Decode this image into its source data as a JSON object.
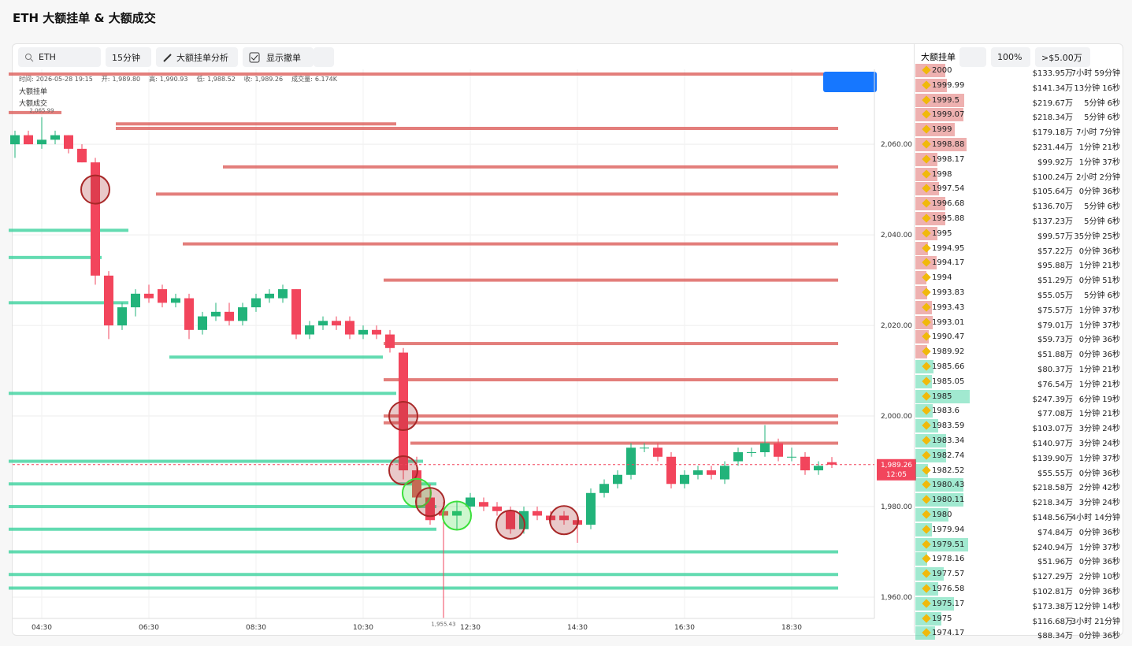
{
  "header": {
    "title": "ETH 大额挂单 & 大额成交"
  },
  "toolbar": {
    "symbol": "ETH",
    "interval": "15分钟",
    "analysis": "大额挂单分析",
    "show_cancel": "显示撤单"
  },
  "chart_data": {
    "type": "candlestick",
    "info": [
      {
        "label": "时间:",
        "value": "2026-05-28 19:15"
      },
      {
        "label": "开:",
        "value": "1,989.80"
      },
      {
        "label": "高:",
        "value": "1,990.93"
      },
      {
        "label": "低:",
        "value": "1,988.52"
      },
      {
        "label": "收:",
        "value": "1,989.26"
      },
      {
        "label": "成交量:",
        "value": "6.174K"
      }
    ],
    "legend": [
      "大额挂单",
      "大额成交"
    ],
    "x": [
      "04:00",
      "04:15",
      "04:30",
      "04:45",
      "05:00",
      "05:15",
      "05:30",
      "05:45",
      "06:00",
      "06:15",
      "06:30",
      "06:45",
      "07:00",
      "07:15",
      "07:30",
      "07:45",
      "08:00",
      "08:15",
      "08:30",
      "08:45",
      "09:00",
      "09:15",
      "09:30",
      "09:45",
      "10:00",
      "10:15",
      "10:30",
      "10:45",
      "11:00",
      "11:15",
      "11:30",
      "11:45",
      "12:00",
      "12:15",
      "12:30",
      "12:45",
      "13:00",
      "13:15",
      "13:30",
      "13:45",
      "14:00",
      "14:15",
      "14:30",
      "14:45",
      "15:00",
      "15:15",
      "15:30",
      "15:45",
      "16:00",
      "16:15",
      "16:30",
      "16:45",
      "17:00",
      "17:15",
      "17:30",
      "17:45",
      "18:00",
      "18:15",
      "18:30",
      "18:45",
      "19:00",
      "19:15"
    ],
    "open": [
      2060,
      2062,
      2060,
      2061,
      2062,
      2059,
      2056,
      2031,
      2020,
      2024,
      2027,
      2028,
      2025,
      2026,
      2019,
      2022,
      2023,
      2021,
      2024,
      2026,
      2026,
      2028,
      2018,
      2020,
      2021,
      2021,
      2018,
      2019,
      2018,
      2014,
      1988,
      1982,
      1979,
      1978,
      1980,
      1981,
      1980,
      1979,
      1975,
      1979,
      1978,
      1978,
      1977,
      1976,
      1983,
      1985,
      1987,
      1993,
      1993,
      1991,
      1985,
      1987,
      1988,
      1986,
      1990,
      1992,
      1992,
      1994,
      1991,
      1991,
      1988,
      1989.8
    ],
    "high": [
      2063,
      2063,
      2065.99,
      2063,
      2062,
      2060,
      2057,
      2032,
      2025,
      2028,
      2029,
      2029,
      2027,
      2027,
      2023,
      2025,
      2025,
      2025,
      2027,
      2028,
      2029,
      2028,
      2021,
      2022,
      2022,
      2022,
      2020,
      2020,
      2019,
      2015,
      1991,
      1985,
      1981,
      1981,
      1983,
      1982,
      1981,
      1980,
      1980,
      1980,
      1979,
      1979,
      1978,
      1984,
      1986,
      1988,
      1994,
      1994,
      1994,
      1992,
      1988,
      1989,
      1989,
      1990,
      1993,
      1993,
      1998,
      1995,
      1993,
      1992,
      1990,
      1990.93
    ],
    "low": [
      2057,
      2060,
      2059,
      2060,
      2058,
      2056,
      2029,
      2017,
      2019,
      2022,
      2025,
      2024,
      2024,
      2017,
      2018,
      2021,
      2020,
      2020,
      2023,
      2025,
      2025,
      2017,
      2017,
      2019,
      2019,
      2017,
      2017,
      2017,
      2014,
      1986,
      1980,
      1976,
      1955.43,
      1975,
      1979,
      1979,
      1978,
      1974,
      1974,
      1977,
      1976,
      1976,
      1972,
      1975,
      1982,
      1984,
      1986,
      1992,
      1990,
      1984,
      1984,
      1986,
      1986,
      1985,
      1989,
      1991,
      1991,
      1990,
      1990,
      1987,
      1987,
      1988.52
    ],
    "close": [
      2062,
      2060,
      2061,
      2062,
      2059,
      2056,
      2031,
      2020,
      2024,
      2027,
      2026,
      2025,
      2026,
      2019,
      2022,
      2023,
      2021,
      2024,
      2026,
      2027,
      2028,
      2018,
      2020,
      2021,
      2020,
      2018,
      2019,
      2018,
      2015,
      1988,
      1982,
      1977,
      1978,
      1979,
      1982,
      1980,
      1979,
      1975,
      1979,
      1978,
      1977,
      1977,
      1976,
      1983,
      1985,
      1987,
      1993,
      1993,
      1991,
      1985,
      1987,
      1988,
      1987,
      1989,
      1992,
      1992,
      1994,
      1991,
      1991,
      1988,
      1989,
      1989.26
    ],
    "up_color": "#22b37a",
    "down_color": "#f2455c",
    "ask_walls": [
      {
        "price": 2075.5,
        "from": "04:00",
        "to": "19:15"
      },
      {
        "price": 2067,
        "from": "04:00",
        "to": "04:45"
      },
      {
        "price": 2064.5,
        "from": "06:00",
        "to": "11:00"
      },
      {
        "price": 2063.5,
        "from": "06:00",
        "to": "19:15"
      },
      {
        "price": 2055,
        "from": "08:00",
        "to": "19:15"
      },
      {
        "price": 2049,
        "from": "06:45",
        "to": "19:15"
      },
      {
        "price": 2038,
        "from": "07:15",
        "to": "19:15"
      },
      {
        "price": 2030,
        "from": "11:00",
        "to": "19:15"
      },
      {
        "price": 2016,
        "from": "11:00",
        "to": "19:15"
      },
      {
        "price": 2008,
        "from": "11:00",
        "to": "19:15"
      },
      {
        "price": 2000,
        "from": "11:00",
        "to": "19:15"
      },
      {
        "price": 1998.5,
        "from": "11:00",
        "to": "19:15"
      },
      {
        "price": 1994,
        "from": "11:30",
        "to": "19:15"
      }
    ],
    "bid_walls": [
      {
        "price": 2041,
        "from": "04:00",
        "to": "06:00"
      },
      {
        "price": 2035,
        "from": "04:00",
        "to": "05:30"
      },
      {
        "price": 2025,
        "from": "04:00",
        "to": "06:00"
      },
      {
        "price": 2013,
        "from": "07:00",
        "to": "10:45"
      },
      {
        "price": 2005,
        "from": "04:00",
        "to": "11:00"
      },
      {
        "price": 1990,
        "from": "04:00",
        "to": "11:30"
      },
      {
        "price": 1985,
        "from": "04:00",
        "to": "11:45"
      },
      {
        "price": 1980,
        "from": "04:00",
        "to": "11:45"
      },
      {
        "price": 1975,
        "from": "04:00",
        "to": "11:45"
      },
      {
        "price": 1970,
        "from": "04:00",
        "to": "19:15"
      },
      {
        "price": 1965,
        "from": "04:00",
        "to": "19:15"
      },
      {
        "price": 1962,
        "from": "04:00",
        "to": "19:15"
      }
    ],
    "ask_color": "#d9534f",
    "bid_color": "#2fcf97",
    "trades": [
      {
        "x": "05:30",
        "price": 2050,
        "side": "sell"
      },
      {
        "x": "11:15",
        "price": 2000,
        "side": "sell"
      },
      {
        "x": "11:15",
        "price": 1988,
        "side": "sell"
      },
      {
        "x": "11:30",
        "price": 1983,
        "side": "buy"
      },
      {
        "x": "11:45",
        "price": 1981,
        "side": "sell"
      },
      {
        "x": "12:15",
        "price": 1978,
        "side": "buy"
      },
      {
        "x": "13:15",
        "price": 1976,
        "side": "sell"
      },
      {
        "x": "14:15",
        "price": 1977,
        "side": "sell"
      }
    ],
    "ylim": [
      1955.3,
      2076.2
    ],
    "yticks": [
      {
        "value": 2060,
        "label": "2,060.00"
      },
      {
        "value": 2040,
        "label": "2,040.00"
      },
      {
        "value": 2020,
        "label": "2,020.00"
      },
      {
        "value": 2000,
        "label": "2,000.00"
      },
      {
        "value": 1980,
        "label": "1,980.00"
      },
      {
        "value": 1960,
        "label": "1,960.00"
      }
    ],
    "xticks": [
      "04:30",
      "06:30",
      "08:30",
      "10:30",
      "12:30",
      "14:30",
      "16:30",
      "18:30"
    ],
    "high_marker": {
      "value": 2065.99,
      "label": "2,065.99"
    },
    "low_marker": {
      "value": 1955.43,
      "label": "1,955.43"
    },
    "last_price": {
      "value": 1989.26,
      "label": "1,989.26"
    },
    "countdown": "12:05"
  },
  "order_book": {
    "title": "大额挂单",
    "ratio": "100%",
    "threshold": ">$5.00万",
    "asks": [
      [
        "2000",
        "$133.95万",
        "7小时 59分钟"
      ],
      [
        "1999.99",
        "$141.34万",
        "13分钟 16秒"
      ],
      [
        "1999.5",
        "$219.67万",
        "5分钟 6秒"
      ],
      [
        "1999.07",
        "$218.34万",
        "5分钟 6秒"
      ],
      [
        "1999",
        "$179.18万",
        "7小时 7分钟"
      ],
      [
        "1998.88",
        "$231.44万",
        "1分钟 21秒"
      ],
      [
        "1998.17",
        "$99.92万",
        "1分钟 37秒"
      ],
      [
        "1998",
        "$100.24万",
        "2小时 2分钟"
      ],
      [
        "1997.54",
        "$105.64万",
        "0分钟 36秒"
      ],
      [
        "1996.68",
        "$136.70万",
        "5分钟 6秒"
      ],
      [
        "1995.88",
        "$137.23万",
        "5分钟 6秒"
      ],
      [
        "1995",
        "$99.57万",
        "35分钟 25秒"
      ],
      [
        "1994.95",
        "$57.22万",
        "0分钟 36秒"
      ],
      [
        "1994.17",
        "$95.88万",
        "1分钟 21秒"
      ],
      [
        "1994",
        "$51.29万",
        "0分钟 51秒"
      ],
      [
        "1993.83",
        "$55.05万",
        "5分钟 6秒"
      ],
      [
        "1993.43",
        "$75.57万",
        "1分钟 37秒"
      ],
      [
        "1993.01",
        "$79.01万",
        "1分钟 37秒"
      ],
      [
        "1990.47",
        "$59.73万",
        "0分钟 36秒"
      ],
      [
        "1989.92",
        "$51.88万",
        "0分钟 36秒"
      ]
    ],
    "bids": [
      [
        "1985.66",
        "$80.37万",
        "1分钟 21秒"
      ],
      [
        "1985.05",
        "$76.54万",
        "1分钟 21秒"
      ],
      [
        "1985",
        "$247.39万",
        "6分钟 19秒"
      ],
      [
        "1983.6",
        "$77.08万",
        "1分钟 21秒"
      ],
      [
        "1983.59",
        "$103.07万",
        "3分钟 24秒"
      ],
      [
        "1983.34",
        "$140.97万",
        "3分钟 24秒"
      ],
      [
        "1982.74",
        "$139.90万",
        "1分钟 37秒"
      ],
      [
        "1982.52",
        "$55.55万",
        "0分钟 36秒"
      ],
      [
        "1980.43",
        "$218.58万",
        "2分钟 42秒"
      ],
      [
        "1980.11",
        "$218.34万",
        "3分钟 24秒"
      ],
      [
        "1980",
        "$148.56万",
        "4小时 14分钟"
      ],
      [
        "1979.94",
        "$74.84万",
        "0分钟 36秒"
      ],
      [
        "1979.51",
        "$240.94万",
        "1分钟 37秒"
      ],
      [
        "1978.16",
        "$51.96万",
        "0分钟 36秒"
      ],
      [
        "1977.57",
        "$127.29万",
        "2分钟 10秒"
      ],
      [
        "1976.58",
        "$102.81万",
        "0分钟 36秒"
      ],
      [
        "1975.17",
        "$173.38万",
        "12分钟 14秒"
      ],
      [
        "1975",
        "$116.68万",
        "3小时 21分钟"
      ],
      [
        "1974.17",
        "$88.34万",
        "0分钟 36秒"
      ]
    ]
  }
}
